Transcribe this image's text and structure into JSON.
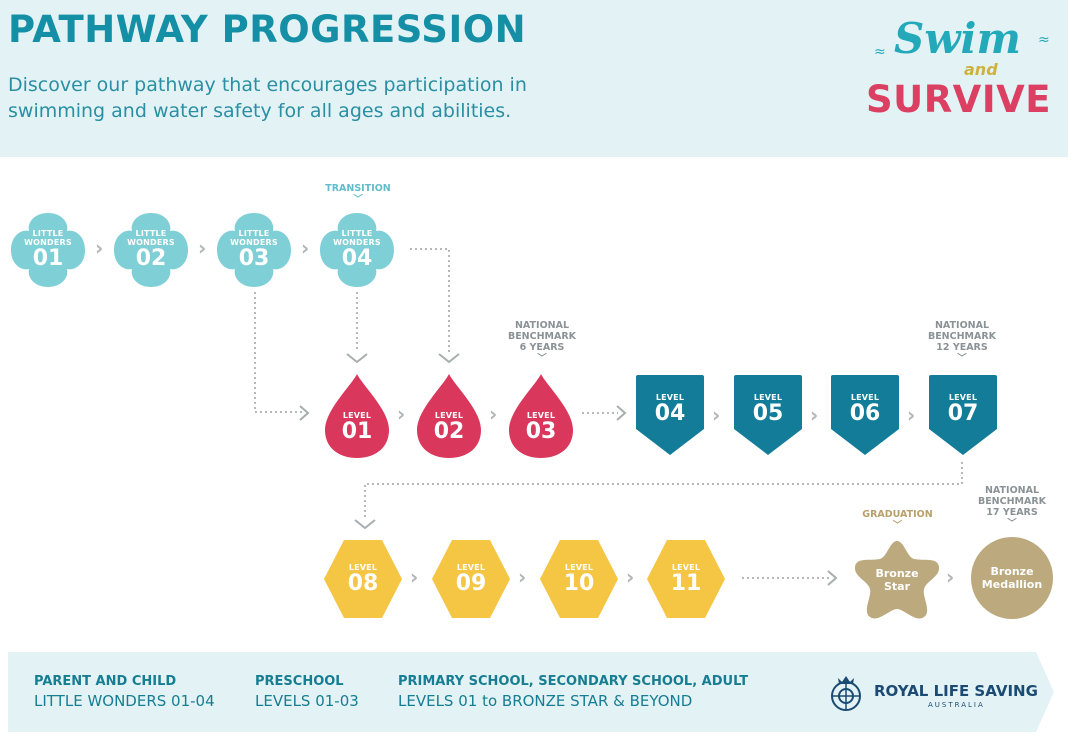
{
  "header": {
    "title": "PATHWAY PROGRESSION",
    "subtitle_line1": "Discover our pathway that encourages participation in",
    "subtitle_line2": "swimming and water safety for all ages and abilities."
  },
  "logo": {
    "word1": "Swim",
    "word2": "and",
    "word3": "SURVIVE"
  },
  "notes": {
    "transition": "TRANSITION",
    "national_benchmark": "NATIONAL",
    "benchmark": "BENCHMARK",
    "age6": "6 YEARS",
    "age12": "12 YEARS",
    "age17": "17 YEARS",
    "graduation": "GRADUATION"
  },
  "little_wonders": [
    {
      "line1": "LITTLE",
      "line2": "WONDERS",
      "num": "01"
    },
    {
      "line1": "LITTLE",
      "line2": "WONDERS",
      "num": "02"
    },
    {
      "line1": "LITTLE",
      "line2": "WONDERS",
      "num": "03"
    },
    {
      "line1": "LITTLE",
      "line2": "WONDERS",
      "num": "04"
    }
  ],
  "levels_drop": [
    {
      "label": "LEVEL",
      "num": "01"
    },
    {
      "label": "LEVEL",
      "num": "02"
    },
    {
      "label": "LEVEL",
      "num": "03"
    }
  ],
  "levels_shield": [
    {
      "label": "LEVEL",
      "num": "04"
    },
    {
      "label": "LEVEL",
      "num": "05"
    },
    {
      "label": "LEVEL",
      "num": "06"
    },
    {
      "label": "LEVEL",
      "num": "07"
    }
  ],
  "levels_hex": [
    {
      "label": "LEVEL",
      "num": "08"
    },
    {
      "label": "LEVEL",
      "num": "09"
    },
    {
      "label": "LEVEL",
      "num": "10"
    },
    {
      "label": "LEVEL",
      "num": "11"
    }
  ],
  "awards": {
    "star_line1": "Bronze",
    "star_line2": "Star",
    "medallion_line1": "Bronze",
    "medallion_line2": "Medallion"
  },
  "footer": {
    "col1_head": "PARENT AND CHILD",
    "col1_sub": "LITTLE WONDERS 01-04",
    "col2_head": "PRESCHOOL",
    "col2_sub": "LEVELS 01-03",
    "col3_head": "PRIMARY SCHOOL, SECONDARY SCHOOL, ADULT",
    "col3_sub": "LEVELS 01 to BRONZE STAR & BEYOND",
    "org_name": "ROYAL LIFE SAVING",
    "org_country": "AUSTRALIA"
  },
  "colors": {
    "teal_light": "#7fcfd6",
    "pink": "#d9375b",
    "teal_dark": "#137d99",
    "yellow": "#f5c544",
    "tan": "#bca97e",
    "header_bg": "#e3f3f5",
    "footer_bg": "#e3f3f5"
  }
}
